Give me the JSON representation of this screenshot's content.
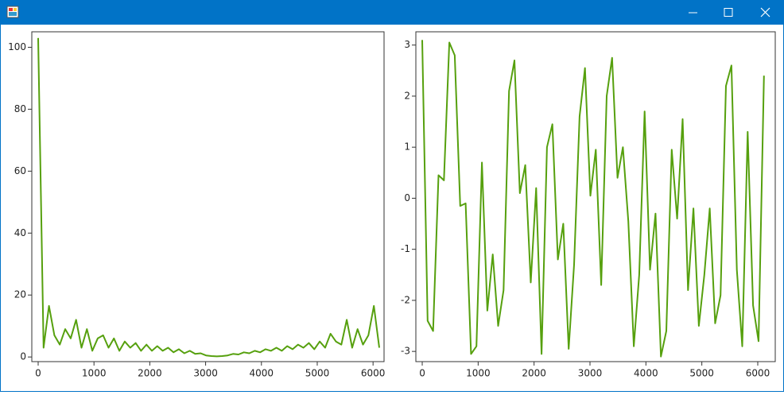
{
  "chart_data": [
    {
      "type": "line",
      "x": [
        0,
        97,
        194,
        291,
        388,
        485,
        582,
        679,
        776,
        873,
        970,
        1067,
        1164,
        1261,
        1358,
        1455,
        1552,
        1649,
        1746,
        1843,
        1940,
        2037,
        2134,
        2231,
        2328,
        2425,
        2522,
        2619,
        2716,
        2813,
        2910,
        3007,
        3104,
        3201,
        3298,
        3395,
        3492,
        3589,
        3686,
        3783,
        3880,
        3977,
        4074,
        4171,
        4268,
        4365,
        4462,
        4559,
        4656,
        4753,
        4850,
        4947,
        5044,
        5141,
        5238,
        5335,
        5432,
        5529,
        5626,
        5723,
        5820,
        5917,
        6014,
        6111
      ],
      "values": [
        103,
        3,
        16.5,
        7,
        4,
        9,
        6,
        12,
        3,
        9,
        2,
        6,
        7,
        3,
        6,
        2,
        5,
        3,
        4.5,
        2,
        4,
        2,
        3.5,
        2,
        3,
        1.5,
        2.5,
        1.2,
        2,
        1,
        1.2,
        0.5,
        0.3,
        0.2,
        0.3,
        0.5,
        1,
        0.8,
        1.5,
        1.2,
        2,
        1.5,
        2.5,
        2,
        3,
        2,
        3.5,
        2.5,
        4,
        3,
        4.5,
        2.5,
        5,
        3,
        7.5,
        5,
        4,
        12,
        3,
        9,
        4,
        7,
        16.5,
        3
      ],
      "color": "#56a00e",
      "xlim": [
        -114,
        6197
      ],
      "ylim": [
        -1.5,
        105
      ],
      "xticks": [
        0,
        1000,
        2000,
        3000,
        4000,
        5000,
        6000
      ],
      "yticks": [
        0,
        20,
        40,
        60,
        80,
        100
      ]
    },
    {
      "type": "line",
      "x": [
        0,
        97,
        194,
        291,
        388,
        485,
        582,
        679,
        776,
        873,
        970,
        1067,
        1164,
        1261,
        1358,
        1455,
        1552,
        1649,
        1746,
        1843,
        1940,
        2037,
        2134,
        2231,
        2328,
        2425,
        2522,
        2619,
        2716,
        2813,
        2910,
        3007,
        3104,
        3201,
        3298,
        3395,
        3492,
        3589,
        3686,
        3783,
        3880,
        3977,
        4074,
        4171,
        4268,
        4365,
        4462,
        4559,
        4656,
        4753,
        4850,
        4947,
        5044,
        5141,
        5238,
        5335,
        5432,
        5529,
        5626,
        5723,
        5820,
        5917,
        6014,
        6111
      ],
      "values": [
        3.1,
        -2.4,
        -2.6,
        0.45,
        0.35,
        3.05,
        2.8,
        -0.15,
        -0.1,
        -3.05,
        -2.9,
        0.7,
        -2.2,
        -1.1,
        -2.5,
        -1.8,
        2.1,
        2.7,
        0.1,
        0.65,
        -1.65,
        0.2,
        -3.05,
        1,
        1.45,
        -1.2,
        -0.5,
        -2.95,
        -1.3,
        1.6,
        2.55,
        0.05,
        0.95,
        -1.7,
        2,
        2.75,
        0.4,
        1,
        -0.45,
        -2.9,
        -1.5,
        1.7,
        -1.4,
        -0.3,
        -3.1,
        -2.6,
        0.95,
        -0.4,
        1.55,
        -1.8,
        -0.2,
        -2.5,
        -1.5,
        -0.2,
        -2.45,
        -1.9,
        2.2,
        2.6,
        -1.4,
        -2.9,
        1.3,
        -2.1,
        -2.8,
        2.4
      ],
      "color": "#56a00e",
      "xlim": [
        -114,
        6313
      ],
      "ylim": [
        -3.2,
        3.26
      ],
      "xticks": [
        0,
        1000,
        2000,
        3000,
        4000,
        5000,
        6000
      ],
      "yticks": [
        -3,
        -2,
        -1,
        0,
        1,
        2,
        3
      ]
    }
  ]
}
